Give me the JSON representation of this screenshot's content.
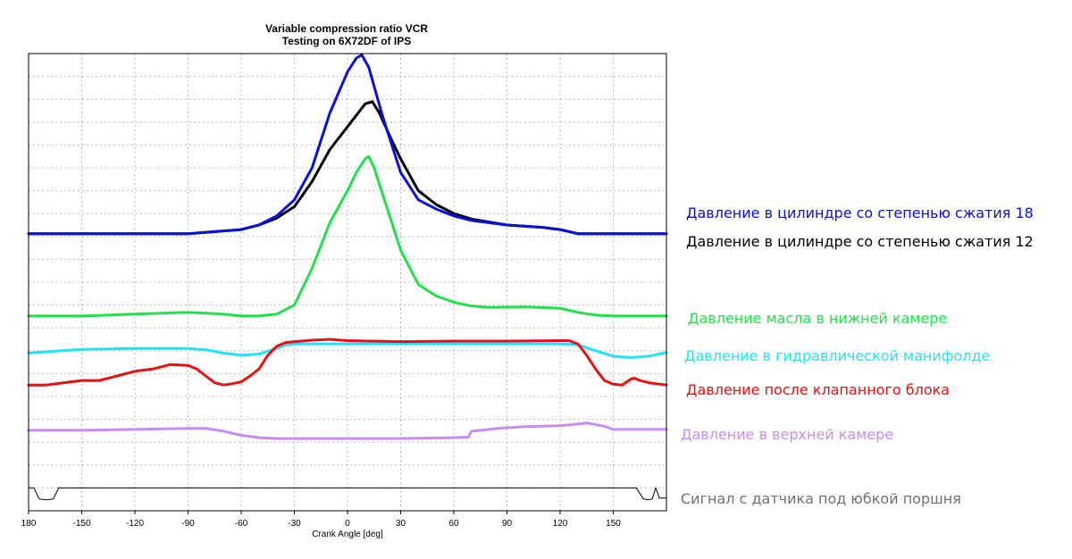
{
  "colors": {
    "cyl18": "#0a10d8",
    "cyl12": "#000000",
    "oil_lower": "#22e04a",
    "hydraulic": "#22e4f0",
    "after_valve": "#e81010",
    "upper": "#c88cf0",
    "sensor": "#000000",
    "sensor_label": "#707070"
  },
  "chart_data": {
    "type": "line",
    "title": [
      "Variable compression ratio VCR",
      "Testing on 6X72DF of IPS"
    ],
    "xlabel": "Crank Angle [deg]",
    "ylabel": "",
    "xlim": [
      -180,
      180
    ],
    "ylim": [
      0,
      100
    ],
    "x_ticks": [
      180,
      -150,
      -120,
      -90,
      -60,
      -30,
      0,
      30,
      60,
      90,
      120,
      150
    ],
    "grid": true,
    "y_axis_labels": false,
    "series": [
      {
        "name": "Давление в цилиндре со степенью сжатия 18",
        "color_key": "cyl18",
        "x": [
          -180,
          -150,
          -120,
          -90,
          -60,
          -50,
          -40,
          -30,
          -20,
          -10,
          0,
          5,
          8,
          12,
          20,
          30,
          40,
          50,
          60,
          70,
          90,
          110,
          120,
          130,
          140,
          150,
          180
        ],
        "y": [
          60.6,
          60.6,
          60.6,
          60.6,
          61.5,
          62.5,
          64.5,
          68,
          75,
          87,
          96,
          99,
          99.7,
          97,
          86,
          74,
          68,
          66,
          64.5,
          63.5,
          62.5,
          62,
          61.5,
          60.6,
          60.6,
          60.6,
          60.6
        ]
      },
      {
        "name": "Давление в цилиндре со степенью сжатия 12",
        "color_key": "cyl12",
        "x": [
          -180,
          -150,
          -120,
          -90,
          -60,
          -50,
          -40,
          -30,
          -20,
          -10,
          0,
          5,
          10,
          14,
          18,
          25,
          30,
          40,
          50,
          60,
          70,
          90,
          110,
          120,
          130,
          140,
          150,
          180
        ],
        "y": [
          60.6,
          60.6,
          60.6,
          60.6,
          61.5,
          62.5,
          64,
          66.5,
          72,
          79,
          84,
          86.5,
          89,
          89.5,
          87,
          81,
          77,
          70,
          67,
          65,
          63.8,
          62.5,
          62,
          61.5,
          60.6,
          60.6,
          60.6,
          60.6
        ]
      },
      {
        "name": "Давление масла в нижней камере",
        "color_key": "oil_lower",
        "x": [
          -180,
          -150,
          -120,
          -90,
          -70,
          -60,
          -50,
          -40,
          -30,
          -20,
          -10,
          0,
          5,
          10,
          12,
          15,
          20,
          30,
          40,
          50,
          60,
          70,
          80,
          100,
          120,
          130,
          140,
          150,
          180
        ],
        "y": [
          42.6,
          42.6,
          43,
          43.4,
          43,
          42.6,
          42.6,
          43,
          45,
          53,
          63,
          70,
          74,
          77,
          77.5,
          75,
          69,
          57,
          49.5,
          47,
          45.6,
          44.8,
          44.5,
          44.6,
          44.3,
          43.4,
          42.8,
          42.6,
          42.6
        ]
      },
      {
        "name": "Давление в гидравлической манифолде",
        "color_key": "hydraulic",
        "x": [
          -180,
          -150,
          -120,
          -90,
          -80,
          -70,
          -60,
          -50,
          -40,
          -35,
          -30,
          120,
          130,
          140,
          150,
          160,
          170,
          180
        ],
        "y": [
          34.5,
          35.3,
          35.5,
          35.5,
          35.2,
          34.5,
          34,
          34.3,
          35.5,
          36.3,
          36.5,
          36.5,
          36.3,
          35,
          33.8,
          33.5,
          33.8,
          34.6
        ]
      },
      {
        "name": "Давление после клапанного блока",
        "color_key": "after_valve",
        "x": [
          -180,
          -170,
          -160,
          -150,
          -140,
          -130,
          -120,
          -110,
          -100,
          -90,
          -85,
          -80,
          -75,
          -70,
          -65,
          -60,
          -55,
          -50,
          -45,
          -40,
          -35,
          -30,
          -20,
          -10,
          0,
          30,
          60,
          90,
          120,
          125,
          130,
          135,
          140,
          145,
          150,
          155,
          160,
          162,
          165,
          170,
          180
        ],
        "y": [
          27.5,
          27.5,
          28,
          28.5,
          28.5,
          29.5,
          30.5,
          31,
          32,
          31.8,
          31,
          29.5,
          28,
          27.5,
          27.8,
          28.2,
          29.5,
          31,
          34,
          36,
          36.8,
          37,
          37.3,
          37.5,
          37.2,
          37,
          37.1,
          37.1,
          37.2,
          37.2,
          36.5,
          34,
          31,
          28.5,
          27.7,
          27.5,
          28.8,
          29,
          28.5,
          28,
          27.5
        ]
      },
      {
        "name": "Давление в верхней камере",
        "color_key": "upper",
        "x": [
          -180,
          -150,
          -120,
          -90,
          -80,
          -70,
          -60,
          -50,
          -40,
          -30,
          0,
          30,
          60,
          68,
          70,
          75,
          85,
          100,
          120,
          135,
          145,
          150,
          180
        ],
        "y": [
          17.6,
          17.6,
          17.8,
          18,
          18,
          17.4,
          16.5,
          16,
          15.8,
          15.8,
          15.8,
          15.8,
          16,
          16.1,
          17.4,
          17.6,
          18,
          18.4,
          18.6,
          19.2,
          18.5,
          17.8,
          17.8
        ]
      },
      {
        "name": "Сигнал с датчика под юбкой поршня",
        "color_key": "sensor",
        "x": [
          -180,
          -177,
          -174,
          -170,
          -166,
          -163,
          -162,
          -159,
          0,
          161,
          163,
          167,
          170,
          172,
          174,
          176,
          180
        ],
        "y": [
          5,
          5,
          2.6,
          2.4,
          2.6,
          5,
          5,
          5,
          5,
          5,
          5,
          2.6,
          2.4,
          2.6,
          5,
          2.8,
          2.8
        ]
      }
    ]
  }
}
